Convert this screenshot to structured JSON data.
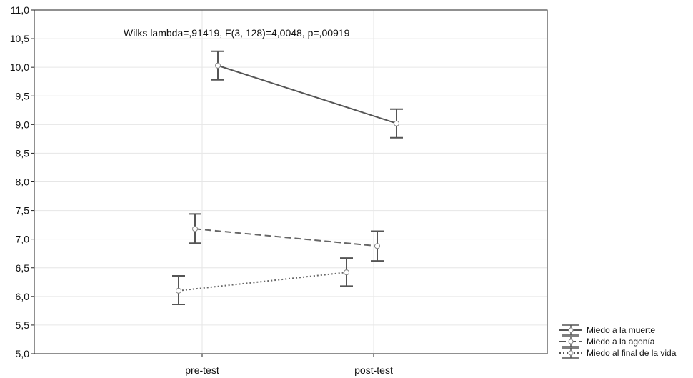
{
  "chart_data": {
    "type": "line",
    "categories": [
      "pre-test",
      "post-test"
    ],
    "ylim": [
      5.0,
      11.0
    ],
    "yticks": [
      "5,0",
      "5,5",
      "6,0",
      "6,5",
      "7,0",
      "7,5",
      "8,0",
      "8,5",
      "9,0",
      "9,5",
      "10,0",
      "10,5",
      "11,0"
    ],
    "ytick_values": [
      5.0,
      5.5,
      6.0,
      6.5,
      7.0,
      7.5,
      8.0,
      8.5,
      9.0,
      9.5,
      10.0,
      10.5,
      11.0
    ],
    "annotation": "Wilks lambda=,91419, F(3, 128)=4,0048, p=,00919",
    "grid": true,
    "legend_position": "bottom-right-outside",
    "series": [
      {
        "name": "Miedo a la muerte",
        "style": "solid",
        "color": "#555555",
        "values": [
          10.03,
          9.02
        ],
        "err_low": [
          9.78,
          8.77
        ],
        "err_high": [
          10.28,
          9.27
        ]
      },
      {
        "name": "Miedo a la agonía",
        "style": "dashed",
        "color": "#666666",
        "values": [
          7.18,
          6.88
        ],
        "err_low": [
          6.93,
          6.62
        ],
        "err_high": [
          7.44,
          7.14
        ]
      },
      {
        "name": "Miedo al final de la vida",
        "style": "dotted",
        "color": "#666666",
        "values": [
          6.1,
          6.42
        ],
        "err_low": [
          5.86,
          6.18
        ],
        "err_high": [
          6.36,
          6.67
        ]
      }
    ]
  }
}
